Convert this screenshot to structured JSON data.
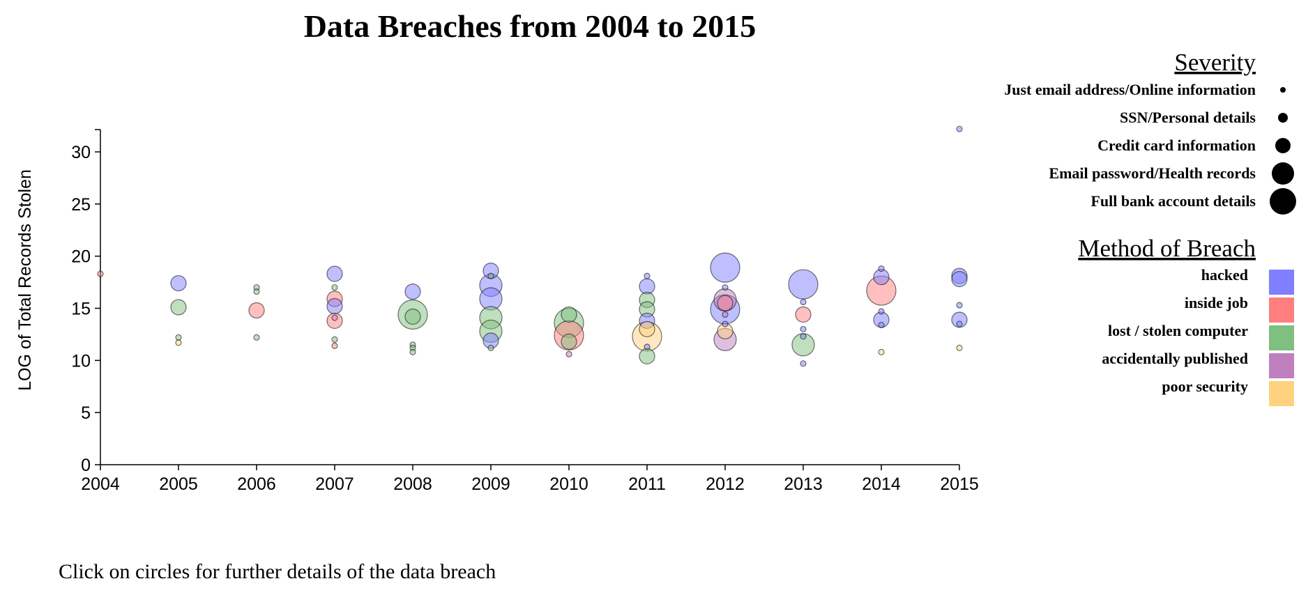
{
  "title": "Data Breaches from 2004 to 2015",
  "footnote": "Click on circles for further details of the data breach",
  "colors": {
    "hacked": "#7f7fff",
    "inside job": "#ff7f7f",
    "lost / stolen computer": "#7fbf7f",
    "accidentally published": "#bf7fbf",
    "poor security": "#ffd27f"
  },
  "severity_legend": {
    "heading": "Severity",
    "items": [
      {
        "label": "Just email address/Online information",
        "level": 1
      },
      {
        "label": "SSN/Personal details",
        "level": 2
      },
      {
        "label": "Credit card information",
        "level": 3
      },
      {
        "label": "Email password/Health records",
        "level": 4
      },
      {
        "label": "Full bank account details",
        "level": 5
      }
    ]
  },
  "method_legend": {
    "heading": "Method of Breach",
    "items": [
      {
        "label": "hacked"
      },
      {
        "label": "inside job"
      },
      {
        "label": "lost / stolen computer"
      },
      {
        "label": "accidentally published"
      },
      {
        "label": "poor security"
      }
    ]
  },
  "chart_data": {
    "type": "scatter",
    "title": "Data Breaches from 2004 to 2015",
    "ylabel": "LOG of Total Records Stolen",
    "xlabel": "",
    "xlim": [
      2004,
      2015
    ],
    "ylim": [
      0,
      32
    ],
    "x_ticks": [
      "2004",
      "2005",
      "2006",
      "2007",
      "2008",
      "2009",
      "2010",
      "2011",
      "2012",
      "2013",
      "2014",
      "2015"
    ],
    "y_ticks": [
      0,
      5,
      10,
      15,
      20,
      25,
      30
    ],
    "size_encoding": "Severity (1-5)",
    "points": [
      {
        "year": 2004,
        "log_records": 18.3,
        "method": "inside job",
        "severity": 1
      },
      {
        "year": 2005,
        "log_records": 17.4,
        "method": "hacked",
        "severity": 3
      },
      {
        "year": 2005,
        "log_records": 15.1,
        "method": "lost / stolen computer",
        "severity": 3
      },
      {
        "year": 2005,
        "log_records": 12.2,
        "method": "lost / stolen computer",
        "severity": 1
      },
      {
        "year": 2005,
        "log_records": 11.7,
        "method": "poor security",
        "severity": 1
      },
      {
        "year": 2006,
        "log_records": 17.0,
        "method": "lost / stolen computer",
        "severity": 1
      },
      {
        "year": 2006,
        "log_records": 16.6,
        "method": "lost / stolen computer",
        "severity": 1
      },
      {
        "year": 2006,
        "log_records": 14.8,
        "method": "inside job",
        "severity": 3
      },
      {
        "year": 2006,
        "log_records": 12.2,
        "method": "lost / stolen computer",
        "severity": 1
      },
      {
        "year": 2007,
        "log_records": 18.3,
        "method": "hacked",
        "severity": 3
      },
      {
        "year": 2007,
        "log_records": 17.0,
        "method": "lost / stolen computer",
        "severity": 1
      },
      {
        "year": 2007,
        "log_records": 15.9,
        "method": "inside job",
        "severity": 3
      },
      {
        "year": 2007,
        "log_records": 15.2,
        "method": "hacked",
        "severity": 3
      },
      {
        "year": 2007,
        "log_records": 14.1,
        "method": "accidentally published",
        "severity": 1
      },
      {
        "year": 2007,
        "log_records": 13.8,
        "method": "inside job",
        "severity": 3
      },
      {
        "year": 2007,
        "log_records": 12.0,
        "method": "lost / stolen computer",
        "severity": 1
      },
      {
        "year": 2007,
        "log_records": 11.4,
        "method": "inside job",
        "severity": 1
      },
      {
        "year": 2008,
        "log_records": 16.6,
        "method": "hacked",
        "severity": 3
      },
      {
        "year": 2008,
        "log_records": 14.4,
        "method": "lost / stolen computer",
        "severity": 5
      },
      {
        "year": 2008,
        "log_records": 14.2,
        "method": "lost / stolen computer",
        "severity": 3
      },
      {
        "year": 2008,
        "log_records": 11.5,
        "method": "lost / stolen computer",
        "severity": 1
      },
      {
        "year": 2008,
        "log_records": 11.2,
        "method": "lost / stolen computer",
        "severity": 1
      },
      {
        "year": 2008,
        "log_records": 10.8,
        "method": "lost / stolen computer",
        "severity": 1
      },
      {
        "year": 2009,
        "log_records": 18.6,
        "method": "hacked",
        "severity": 3
      },
      {
        "year": 2009,
        "log_records": 18.1,
        "method": "lost / stolen computer",
        "severity": 1
      },
      {
        "year": 2009,
        "log_records": 17.2,
        "method": "hacked",
        "severity": 4
      },
      {
        "year": 2009,
        "log_records": 15.9,
        "method": "hacked",
        "severity": 4
      },
      {
        "year": 2009,
        "log_records": 14.1,
        "method": "lost / stolen computer",
        "severity": 4
      },
      {
        "year": 2009,
        "log_records": 12.8,
        "method": "lost / stolen computer",
        "severity": 4
      },
      {
        "year": 2009,
        "log_records": 11.9,
        "method": "hacked",
        "severity": 3
      },
      {
        "year": 2009,
        "log_records": 11.2,
        "method": "lost / stolen computer",
        "severity": 1
      },
      {
        "year": 2010,
        "log_records": 14.4,
        "method": "lost / stolen computer",
        "severity": 3
      },
      {
        "year": 2010,
        "log_records": 13.6,
        "method": "lost / stolen computer",
        "severity": 5
      },
      {
        "year": 2010,
        "log_records": 12.4,
        "method": "inside job",
        "severity": 5
      },
      {
        "year": 2010,
        "log_records": 11.8,
        "method": "lost / stolen computer",
        "severity": 3
      },
      {
        "year": 2010,
        "log_records": 10.6,
        "method": "accidentally published",
        "severity": 1
      },
      {
        "year": 2011,
        "log_records": 18.1,
        "method": "hacked",
        "severity": 1
      },
      {
        "year": 2011,
        "log_records": 17.1,
        "method": "hacked",
        "severity": 3
      },
      {
        "year": 2011,
        "log_records": 15.8,
        "method": "lost / stolen computer",
        "severity": 3
      },
      {
        "year": 2011,
        "log_records": 14.9,
        "method": "lost / stolen computer",
        "severity": 3
      },
      {
        "year": 2011,
        "log_records": 13.8,
        "method": "hacked",
        "severity": 3
      },
      {
        "year": 2011,
        "log_records": 13.0,
        "method": "poor security",
        "severity": 3
      },
      {
        "year": 2011,
        "log_records": 12.3,
        "method": "poor security",
        "severity": 5
      },
      {
        "year": 2011,
        "log_records": 11.3,
        "method": "hacked",
        "severity": 1
      },
      {
        "year": 2011,
        "log_records": 10.4,
        "method": "lost / stolen computer",
        "severity": 3
      },
      {
        "year": 2012,
        "log_records": 18.9,
        "method": "hacked",
        "severity": 5
      },
      {
        "year": 2012,
        "log_records": 17.0,
        "method": "hacked",
        "severity": 1
      },
      {
        "year": 2012,
        "log_records": 15.8,
        "method": "accidentally published",
        "severity": 4
      },
      {
        "year": 2012,
        "log_records": 15.5,
        "method": "inside job",
        "severity": 3
      },
      {
        "year": 2012,
        "log_records": 14.9,
        "method": "hacked",
        "severity": 5
      },
      {
        "year": 2012,
        "log_records": 14.4,
        "method": "accidentally published",
        "severity": 1
      },
      {
        "year": 2012,
        "log_records": 13.5,
        "method": "hacked",
        "severity": 1
      },
      {
        "year": 2012,
        "log_records": 12.8,
        "method": "poor security",
        "severity": 3
      },
      {
        "year": 2012,
        "log_records": 12.0,
        "method": "accidentally published",
        "severity": 4
      },
      {
        "year": 2013,
        "log_records": 17.3,
        "method": "hacked",
        "severity": 5
      },
      {
        "year": 2013,
        "log_records": 15.6,
        "method": "hacked",
        "severity": 1
      },
      {
        "year": 2013,
        "log_records": 14.4,
        "method": "inside job",
        "severity": 3
      },
      {
        "year": 2013,
        "log_records": 13.0,
        "method": "hacked",
        "severity": 1
      },
      {
        "year": 2013,
        "log_records": 12.3,
        "method": "hacked",
        "severity": 1
      },
      {
        "year": 2013,
        "log_records": 11.5,
        "method": "lost / stolen computer",
        "severity": 4
      },
      {
        "year": 2013,
        "log_records": 9.7,
        "method": "hacked",
        "severity": 1
      },
      {
        "year": 2014,
        "log_records": 18.8,
        "method": "hacked",
        "severity": 1
      },
      {
        "year": 2014,
        "log_records": 18.0,
        "method": "hacked",
        "severity": 3
      },
      {
        "year": 2014,
        "log_records": 16.7,
        "method": "inside job",
        "severity": 5
      },
      {
        "year": 2014,
        "log_records": 14.7,
        "method": "hacked",
        "severity": 1
      },
      {
        "year": 2014,
        "log_records": 13.9,
        "method": "hacked",
        "severity": 3
      },
      {
        "year": 2014,
        "log_records": 13.4,
        "method": "hacked",
        "severity": 1
      },
      {
        "year": 2014,
        "log_records": 10.8,
        "method": "poor security",
        "severity": 1
      },
      {
        "year": 2015,
        "log_records": 32.2,
        "method": "hacked",
        "severity": 1
      },
      {
        "year": 2015,
        "log_records": 18.1,
        "method": "hacked",
        "severity": 3
      },
      {
        "year": 2015,
        "log_records": 17.8,
        "method": "hacked",
        "severity": 3
      },
      {
        "year": 2015,
        "log_records": 15.3,
        "method": "hacked",
        "severity": 1
      },
      {
        "year": 2015,
        "log_records": 13.9,
        "method": "hacked",
        "severity": 3
      },
      {
        "year": 2015,
        "log_records": 13.5,
        "method": "hacked",
        "severity": 1
      },
      {
        "year": 2015,
        "log_records": 11.2,
        "method": "poor security",
        "severity": 1
      }
    ]
  }
}
